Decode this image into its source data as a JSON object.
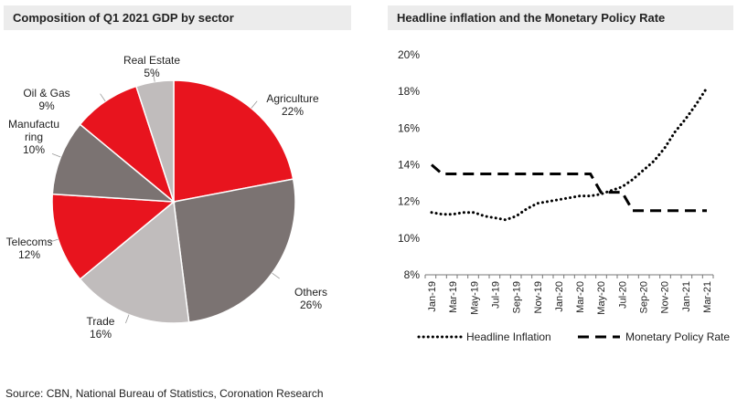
{
  "source": "Source: CBN, National Bureau of Statistics, Coronation Research",
  "chart_data": [
    {
      "type": "pie",
      "title": "Composition of Q1 2021 GDP by sector",
      "slices": [
        {
          "label": "Agriculture",
          "value": 22,
          "value_label": "22%",
          "color": "#e8141e"
        },
        {
          "label": "Others",
          "value": 26,
          "value_label": "26%",
          "color": "#7b7372"
        },
        {
          "label": "Trade",
          "value": 16,
          "value_label": "16%",
          "color": "#c0bcbc"
        },
        {
          "label": "Telecoms",
          "value": 12,
          "value_label": "12%",
          "color": "#e8141e"
        },
        {
          "label": "Manufactu ring",
          "value": 10,
          "value_label": "10%",
          "color": "#7b7372"
        },
        {
          "label": "Oil & Gas",
          "value": 9,
          "value_label": "9%",
          "color": "#e8141e"
        },
        {
          "label": "Real Estate",
          "value": 5,
          "value_label": "5%",
          "color": "#c0bcbc"
        }
      ]
    },
    {
      "type": "line",
      "title": "Headline inflation and the Monetary Policy Rate",
      "ylim": [
        8,
        20
      ],
      "yticks": [
        "8%",
        "10%",
        "12%",
        "14%",
        "16%",
        "18%",
        "20%"
      ],
      "xtick_labels": [
        "Jan-19",
        "Mar-19",
        "May-19",
        "Jul-19",
        "Sep-19",
        "Nov-19",
        "Jan-20",
        "Mar-20",
        "May-20",
        "Jul-20",
        "Sep-20",
        "Nov-20",
        "Jan-21",
        "Mar-21"
      ],
      "x": [
        "Jan-19",
        "Feb-19",
        "Mar-19",
        "Apr-19",
        "May-19",
        "Jun-19",
        "Jul-19",
        "Aug-19",
        "Sep-19",
        "Oct-19",
        "Nov-19",
        "Dec-19",
        "Jan-20",
        "Feb-20",
        "Mar-20",
        "Apr-20",
        "May-20",
        "Jun-20",
        "Jul-20",
        "Aug-20",
        "Sep-20",
        "Oct-20",
        "Nov-20",
        "Dec-20",
        "Jan-21",
        "Feb-21",
        "Mar-21"
      ],
      "series": [
        {
          "name": "Headline Inflation",
          "style": "dotted",
          "values": [
            11.4,
            11.3,
            11.3,
            11.4,
            11.4,
            11.2,
            11.1,
            11.0,
            11.2,
            11.6,
            11.9,
            12.0,
            12.1,
            12.2,
            12.3,
            12.3,
            12.4,
            12.6,
            12.8,
            13.2,
            13.7,
            14.2,
            14.9,
            15.8,
            16.5,
            17.3,
            18.2
          ]
        },
        {
          "name": "Monetary Policy Rate",
          "style": "dashed",
          "values": [
            14.0,
            13.5,
            13.5,
            13.5,
            13.5,
            13.5,
            13.5,
            13.5,
            13.5,
            13.5,
            13.5,
            13.5,
            13.5,
            13.5,
            13.5,
            13.5,
            12.5,
            12.5,
            12.5,
            11.5,
            11.5,
            11.5,
            11.5,
            11.5,
            11.5,
            11.5,
            11.5
          ]
        }
      ]
    }
  ]
}
